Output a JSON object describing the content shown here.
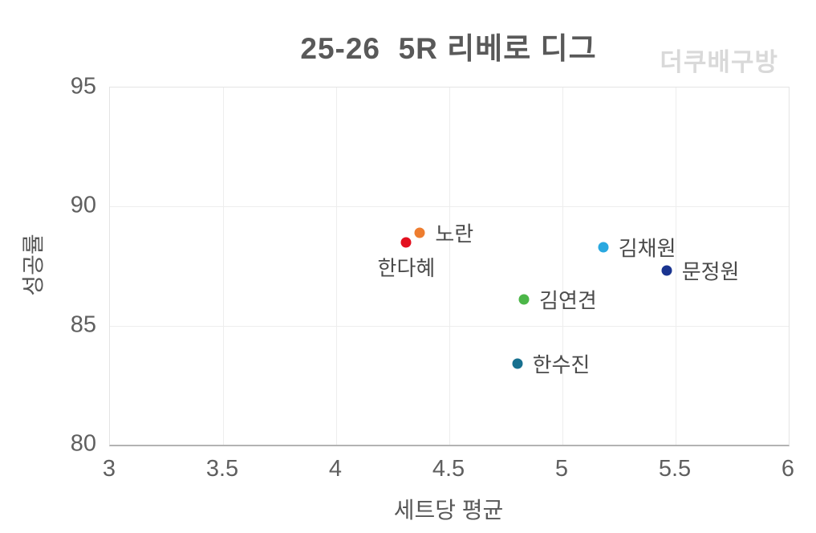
{
  "chart_data": {
    "type": "scatter",
    "title": "25-26  5R 리베로 디그",
    "watermark": "더쿠배구방",
    "xlabel": "세트당 평균",
    "ylabel": "성공률",
    "xlim": [
      3,
      6
    ],
    "ylim": [
      80,
      95
    ],
    "xticks": [
      3,
      3.5,
      4,
      4.5,
      5,
      5.5,
      6
    ],
    "xtick_labels": [
      "3",
      "3.5",
      "4",
      "4.5",
      "5",
      "5.5",
      "6"
    ],
    "yticks": [
      80,
      85,
      90,
      95
    ],
    "ytick_labels": [
      "80",
      "85",
      "90",
      "95"
    ],
    "grid": true,
    "legend_position": "none",
    "points": [
      {
        "name": "한다혜",
        "x": 4.31,
        "y": 88.5,
        "color": "#e3101f",
        "label_pos": "below"
      },
      {
        "name": "노란",
        "x": 4.37,
        "y": 88.9,
        "color": "#ee7d2f",
        "label_pos": "right"
      },
      {
        "name": "김채원",
        "x": 5.18,
        "y": 88.3,
        "color": "#29a8e0",
        "label_pos": "right"
      },
      {
        "name": "문정원",
        "x": 5.46,
        "y": 87.3,
        "color": "#1a3490",
        "label_pos": "right"
      },
      {
        "name": "김연견",
        "x": 4.83,
        "y": 86.1,
        "color": "#4cb648",
        "label_pos": "right"
      },
      {
        "name": "한수진",
        "x": 4.8,
        "y": 83.4,
        "color": "#17708f",
        "label_pos": "right"
      }
    ]
  },
  "colors": {
    "title_text": "#595959",
    "watermark_text": "#d9d9d9",
    "tick_text": "#5f5f5f",
    "point_label_text": "#4a4a4a",
    "gridline": "#ededed",
    "plot_border": "#e4e4e4",
    "axis_line": "#b3b3b3",
    "background": "#ffffff"
  }
}
